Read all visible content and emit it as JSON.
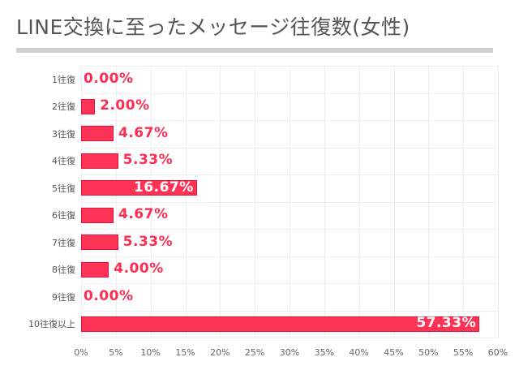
{
  "chart_data": {
    "type": "bar",
    "orientation": "horizontal",
    "title": "LINE交換に至ったメッセージ往復数(女性)",
    "xlabel": "",
    "ylabel": "",
    "categories": [
      "1往復",
      "2往復",
      "3往復",
      "4往復",
      "5往復",
      "6往復",
      "7往復",
      "8往復",
      "9往復",
      "10往復以上"
    ],
    "values": [
      0.0,
      2.0,
      4.67,
      5.33,
      16.67,
      4.67,
      5.33,
      4.0,
      0.0,
      57.33
    ],
    "value_labels": [
      "0.00%",
      "2.00%",
      "4.67%",
      "5.33%",
      "16.67%",
      "4.67%",
      "5.33%",
      "4.00%",
      "0.00%",
      "57.33%"
    ],
    "xlim": [
      0,
      60
    ],
    "xticks": [
      "0%",
      "5%",
      "10%",
      "15%",
      "20%",
      "25%",
      "30%",
      "35%",
      "40%",
      "45%",
      "50%",
      "55%",
      "60%"
    ],
    "grid": true,
    "legend": null,
    "colors": {
      "bar": "#ff3355",
      "bar_border": "#e8113a",
      "label": "#ff2c52",
      "grid": "#eeeeee",
      "title_rule": "#cfcfcf"
    }
  }
}
